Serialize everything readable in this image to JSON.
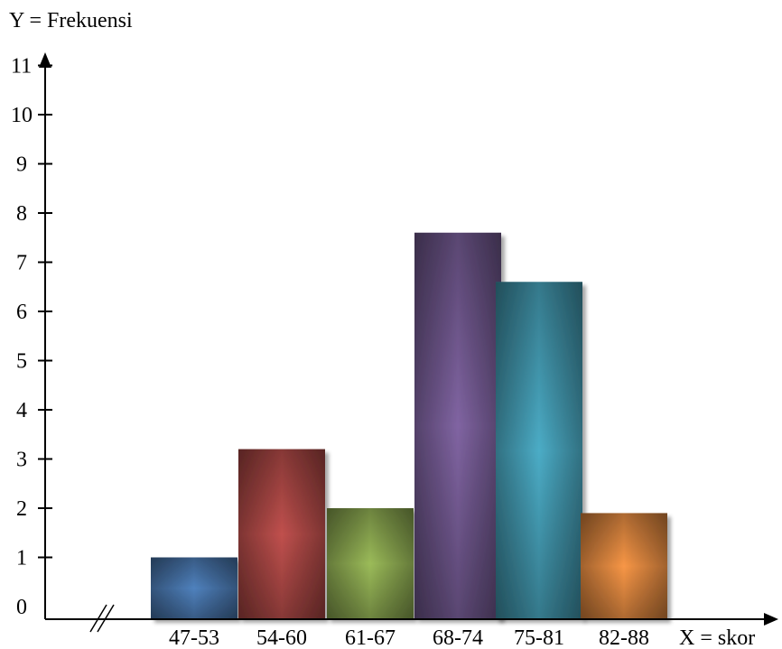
{
  "chart_data": {
    "type": "bar",
    "ylabel": "Y = Frekuensi",
    "xlabel": "X = skor",
    "categories": [
      "47-53",
      "54-60",
      "61-67",
      "68-74",
      "75-81",
      "82-88"
    ],
    "values": [
      1,
      3.2,
      2,
      7.6,
      6.6,
      1.9
    ],
    "ylim": [
      0,
      11
    ],
    "yticks": [
      "0",
      "1",
      "2",
      "3",
      "4",
      "5",
      "6",
      "7",
      "8",
      "9",
      "10",
      "11"
    ],
    "axis_break": true,
    "grid": false,
    "bar_colors": [
      "#4F81BD",
      "#C0504D",
      "#9BBB59",
      "#8064A2",
      "#4BACC6",
      "#F79646"
    ]
  }
}
